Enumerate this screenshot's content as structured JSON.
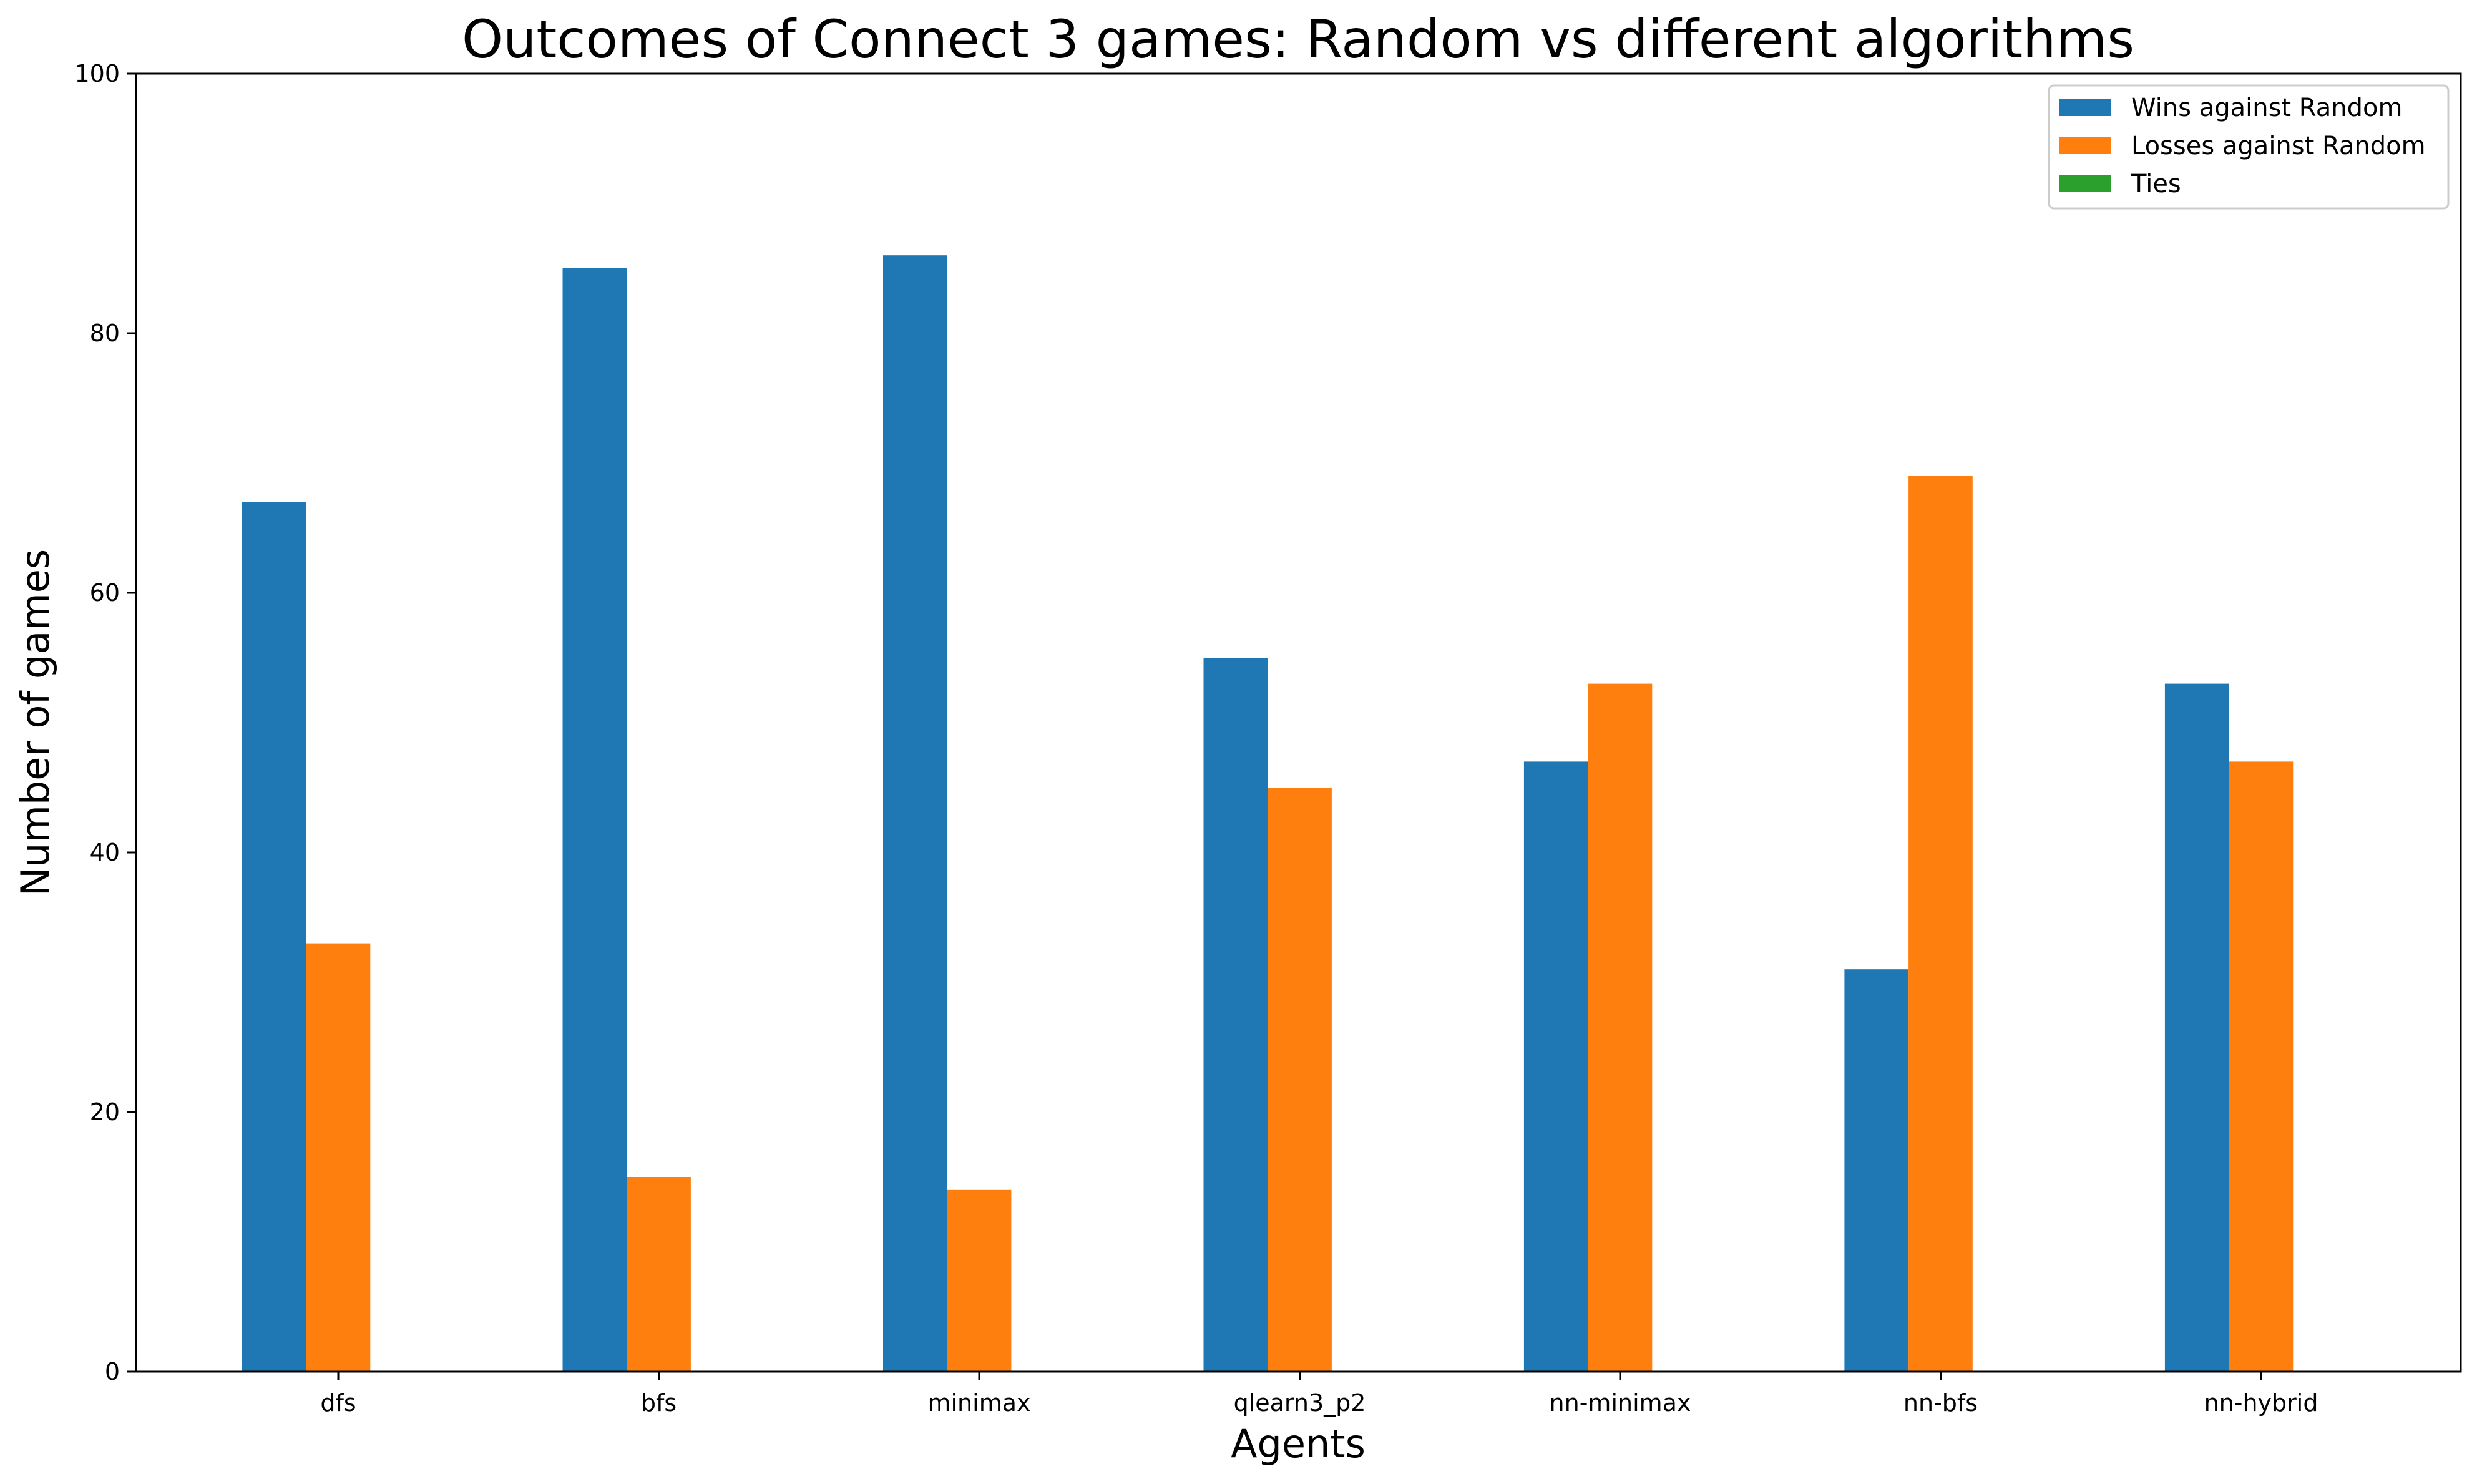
{
  "chart_data": {
    "type": "bar",
    "title": "Outcomes of Connect 3 games: Random vs different algorithms",
    "xlabel": "Agents",
    "ylabel": "Number of games",
    "ylim": [
      0,
      100
    ],
    "yticks": [
      "0",
      "20",
      "40",
      "60",
      "80",
      "100"
    ],
    "categories": [
      "dfs",
      "bfs",
      "minimax",
      "qlearn3_p2",
      "nn-minimax",
      "nn-bfs",
      "nn-hybrid"
    ],
    "series": [
      {
        "name": "Wins against Random",
        "color": "#1f77b4",
        "values": [
          67,
          85,
          86,
          55,
          47,
          31,
          53
        ]
      },
      {
        "name": "Losses against Random",
        "color": "#ff7f0e",
        "values": [
          33,
          15,
          14,
          45,
          53,
          69,
          47
        ]
      },
      {
        "name": "Ties",
        "color": "#2ca02c",
        "values": [
          0,
          0,
          0,
          0,
          0,
          0,
          0
        ]
      }
    ],
    "legend_position": "top-right",
    "grid": false
  }
}
